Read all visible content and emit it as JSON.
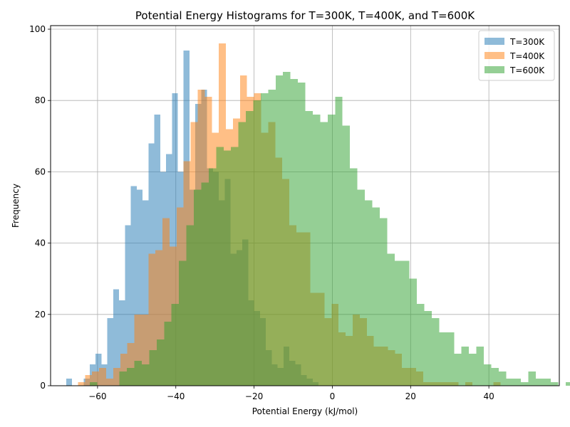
{
  "chart_data": {
    "type": "histogram",
    "title": "Potential Energy Histograms for T=300K, T=400K, and T=600K",
    "xlabel": "Potential Energy (kJ/mol)",
    "ylabel": "Frequency",
    "xlim": [
      -72,
      58
    ],
    "ylim": [
      0,
      101
    ],
    "xticks": [
      -60,
      -40,
      -20,
      0,
      20,
      40
    ],
    "xtick_labels": [
      "−60",
      "−40",
      "−20",
      "0",
      "20",
      "40"
    ],
    "yticks": [
      0,
      20,
      40,
      60,
      80,
      100
    ],
    "ytick_labels": [
      "0",
      "20",
      "40",
      "60",
      "80",
      "100"
    ],
    "grid": true,
    "legend_position": "top-right",
    "series": [
      {
        "name": "T=300K",
        "color": "#1f77b4",
        "alpha": 0.5,
        "bin_start": -68,
        "bin_width": 1.5,
        "counts": [
          2,
          0,
          0,
          2,
          6,
          9,
          6,
          19,
          27,
          24,
          45,
          56,
          55,
          52,
          68,
          76,
          60,
          65,
          82,
          60,
          94,
          55,
          79,
          83,
          61,
          60,
          52,
          58,
          37,
          38,
          41,
          24,
          21,
          19,
          10,
          6,
          5,
          11,
          7,
          6,
          3,
          2,
          1,
          0,
          0,
          0,
          0,
          0,
          0,
          0
        ]
      },
      {
        "name": "T=400K",
        "color": "#ff7f0e",
        "alpha": 0.5,
        "bin_start": -65,
        "bin_width": 1.8,
        "counts": [
          1,
          3,
          4,
          5,
          2,
          5,
          9,
          12,
          20,
          20,
          37,
          38,
          47,
          39,
          50,
          63,
          74,
          83,
          81,
          71,
          96,
          72,
          75,
          87,
          81,
          82,
          71,
          74,
          64,
          58,
          45,
          43,
          43,
          26,
          26,
          19,
          23,
          15,
          14,
          20,
          19,
          14,
          11,
          11,
          10,
          9,
          5,
          5,
          4,
          1,
          1,
          1,
          1,
          1,
          0,
          1,
          0,
          0,
          0,
          1
        ]
      },
      {
        "name": "T=600K",
        "color": "#2ca02c",
        "alpha": 0.5,
        "bin_start": -62,
        "bin_width": 1.9,
        "counts": [
          1,
          0,
          0,
          0,
          4,
          5,
          7,
          6,
          10,
          13,
          18,
          23,
          35,
          45,
          55,
          57,
          61,
          67,
          66,
          67,
          74,
          77,
          80,
          82,
          83,
          87,
          88,
          86,
          85,
          77,
          76,
          74,
          76,
          81,
          73,
          61,
          55,
          52,
          50,
          47,
          37,
          35,
          35,
          30,
          23,
          21,
          19,
          15,
          15,
          9,
          11,
          9,
          11,
          6,
          5,
          4,
          2,
          2,
          1,
          4,
          2,
          2,
          1,
          0,
          1,
          0,
          1,
          2,
          2,
          1,
          0,
          0,
          1
        ]
      }
    ]
  }
}
